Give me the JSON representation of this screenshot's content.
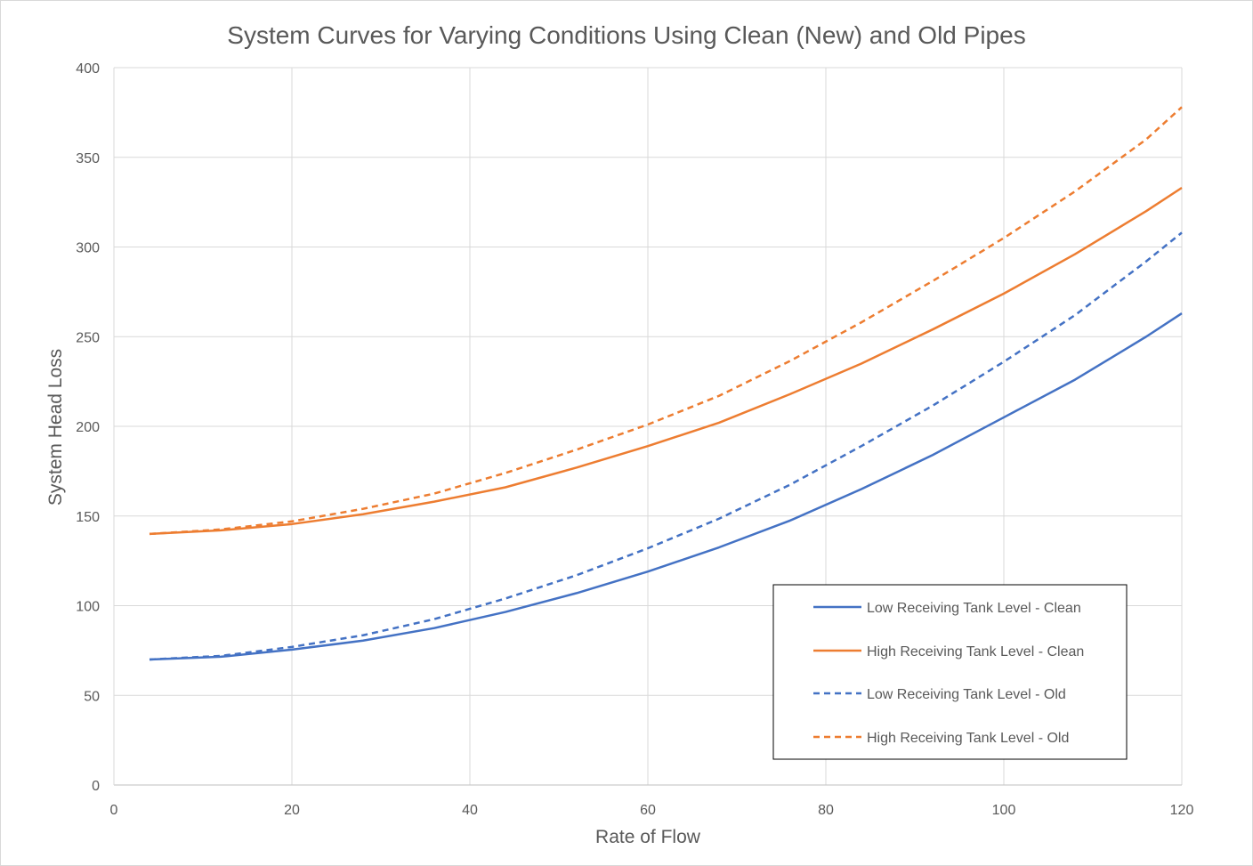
{
  "chart_data": {
    "type": "line",
    "title": "System Curves for Varying Conditions Using Clean (New) and Old Pipes",
    "xlabel": "Rate of Flow",
    "ylabel": "System Head Loss",
    "xlim": [
      0,
      120
    ],
    "ylim": [
      0,
      400
    ],
    "x_ticks": [
      0,
      20,
      40,
      60,
      80,
      100,
      120
    ],
    "y_ticks": [
      0,
      50,
      100,
      150,
      200,
      250,
      300,
      350,
      400
    ],
    "grid": true,
    "legend_position": "bottom-right",
    "series": [
      {
        "name": "Low Receiving Tank Level - Clean",
        "color": "#4472c4",
        "dash": "solid",
        "x": [
          4,
          12,
          20,
          28,
          36,
          44,
          52,
          60,
          68,
          76,
          84,
          92,
          100,
          108,
          116,
          120
        ],
        "y": [
          70,
          71.5,
          75.5,
          80.5,
          87.5,
          96.5,
          107,
          119,
          132.5,
          147.5,
          165,
          184,
          205,
          226,
          250,
          263
        ]
      },
      {
        "name": "High Receiving Tank Level - Clean",
        "color": "#ed7d31",
        "dash": "solid",
        "x": [
          4,
          12,
          20,
          28,
          36,
          44,
          52,
          60,
          68,
          76,
          84,
          92,
          100,
          108,
          116,
          120
        ],
        "y": [
          140,
          142,
          145.5,
          151,
          158,
          166,
          177,
          189,
          202,
          218,
          235,
          254,
          274,
          296,
          320,
          333
        ]
      },
      {
        "name": "Low Receiving Tank Level - Old",
        "color": "#4472c4",
        "dash": "dashed",
        "x": [
          4,
          12,
          20,
          28,
          36,
          44,
          52,
          60,
          68,
          76,
          84,
          92,
          100,
          108,
          116,
          120
        ],
        "y": [
          70,
          72,
          77,
          83.5,
          92.5,
          104,
          117,
          132,
          148.5,
          167.5,
          189,
          211.5,
          236,
          262,
          292,
          308
        ]
      },
      {
        "name": "High Receiving Tank Level - Old",
        "color": "#ed7d31",
        "dash": "dashed",
        "x": [
          4,
          12,
          20,
          28,
          36,
          44,
          52,
          60,
          68,
          76,
          84,
          92,
          100,
          108,
          116,
          120
        ],
        "y": [
          140,
          142.5,
          147,
          154,
          162.5,
          174,
          187,
          201,
          217,
          236.5,
          258,
          281,
          305,
          331,
          360,
          378
        ]
      }
    ]
  }
}
